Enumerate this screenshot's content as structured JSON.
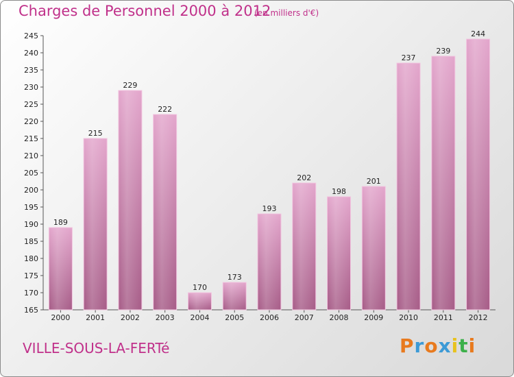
{
  "header": {
    "title": "Charges de Personnel 2000 à 2012",
    "subtitle": "(en milliers d'€)"
  },
  "footer": {
    "commune": "VILLE-SOUS-LA-FERTé",
    "logo_text": "Proxiti",
    "logo_colors": [
      "#e87a1e",
      "#3c9ad6",
      "#e87a1e",
      "#3c9ad6",
      "#e8c21e",
      "#3cb04a",
      "#e87a1e"
    ]
  },
  "chart_data": {
    "type": "bar",
    "categories": [
      "2000",
      "2001",
      "2002",
      "2003",
      "2004",
      "2005",
      "2006",
      "2007",
      "2008",
      "2009",
      "2010",
      "2011",
      "2012"
    ],
    "values": [
      189,
      215,
      229,
      222,
      170,
      173,
      193,
      202,
      198,
      201,
      237,
      239,
      244
    ],
    "ylim": [
      165,
      245
    ],
    "yticks": [
      165,
      170,
      175,
      180,
      185,
      190,
      195,
      200,
      205,
      210,
      215,
      220,
      225,
      230,
      235,
      240,
      245
    ],
    "grid": false,
    "bar_color": "#d98cbd",
    "bar_color_dark": "#b0608f"
  }
}
